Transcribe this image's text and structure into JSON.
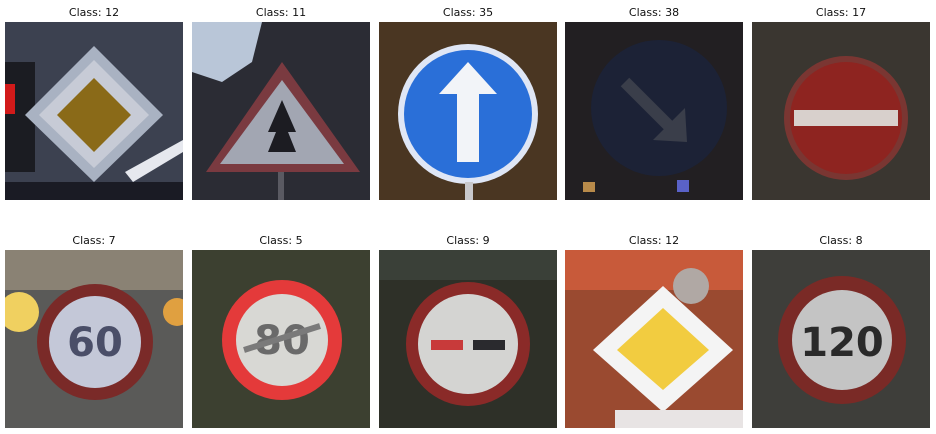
{
  "figure": {
    "rows": 2,
    "cols": 5,
    "panels": [
      {
        "title": "Class: 12",
        "sign": "priority-road-sign"
      },
      {
        "title": "Class: 11",
        "sign": "right-of-way-warning-sign"
      },
      {
        "title": "Class: 35",
        "sign": "ahead-only-sign"
      },
      {
        "title": "Class: 38",
        "sign": "keep-right-sign"
      },
      {
        "title": "Class: 17",
        "sign": "no-entry-sign"
      },
      {
        "title": "Class: 7",
        "sign": "speed-limit-sign"
      },
      {
        "title": "Class: 5",
        "sign": "speed-limit-sign"
      },
      {
        "title": "Class: 9",
        "sign": "no-passing-sign"
      },
      {
        "title": "Class: 12",
        "sign": "priority-road-sign"
      },
      {
        "title": "Class: 8",
        "sign": "speed-limit-sign"
      }
    ]
  }
}
